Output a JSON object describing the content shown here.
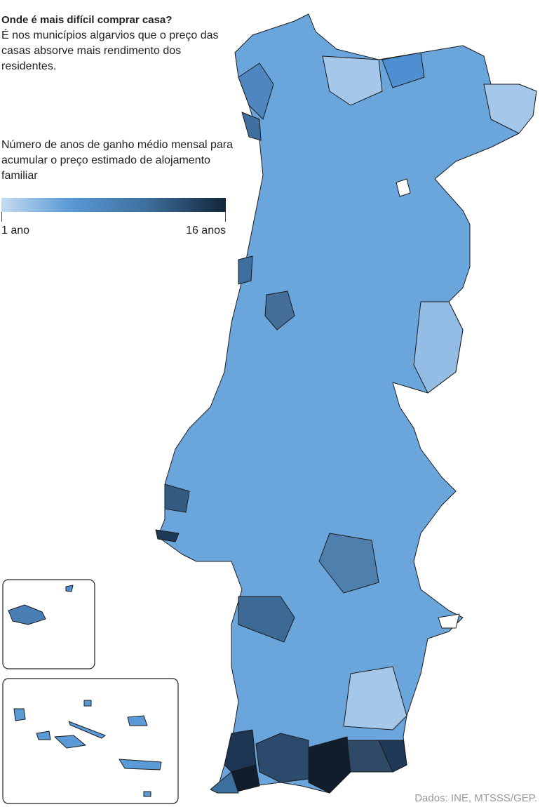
{
  "header": {
    "title": "Onde é mais difícil comprar casa?",
    "subtitle": "É nos municípios algarvios que o preço das casas absorve mais rendimento dos residentes."
  },
  "legend": {
    "title": "Número de anos de ganho médio mensal para acumular o preço estimado de alojamento familiar",
    "min_label": "1 ano",
    "max_label": "16 anos"
  },
  "source": "Dados: INE, MTSSS/GEP."
}
